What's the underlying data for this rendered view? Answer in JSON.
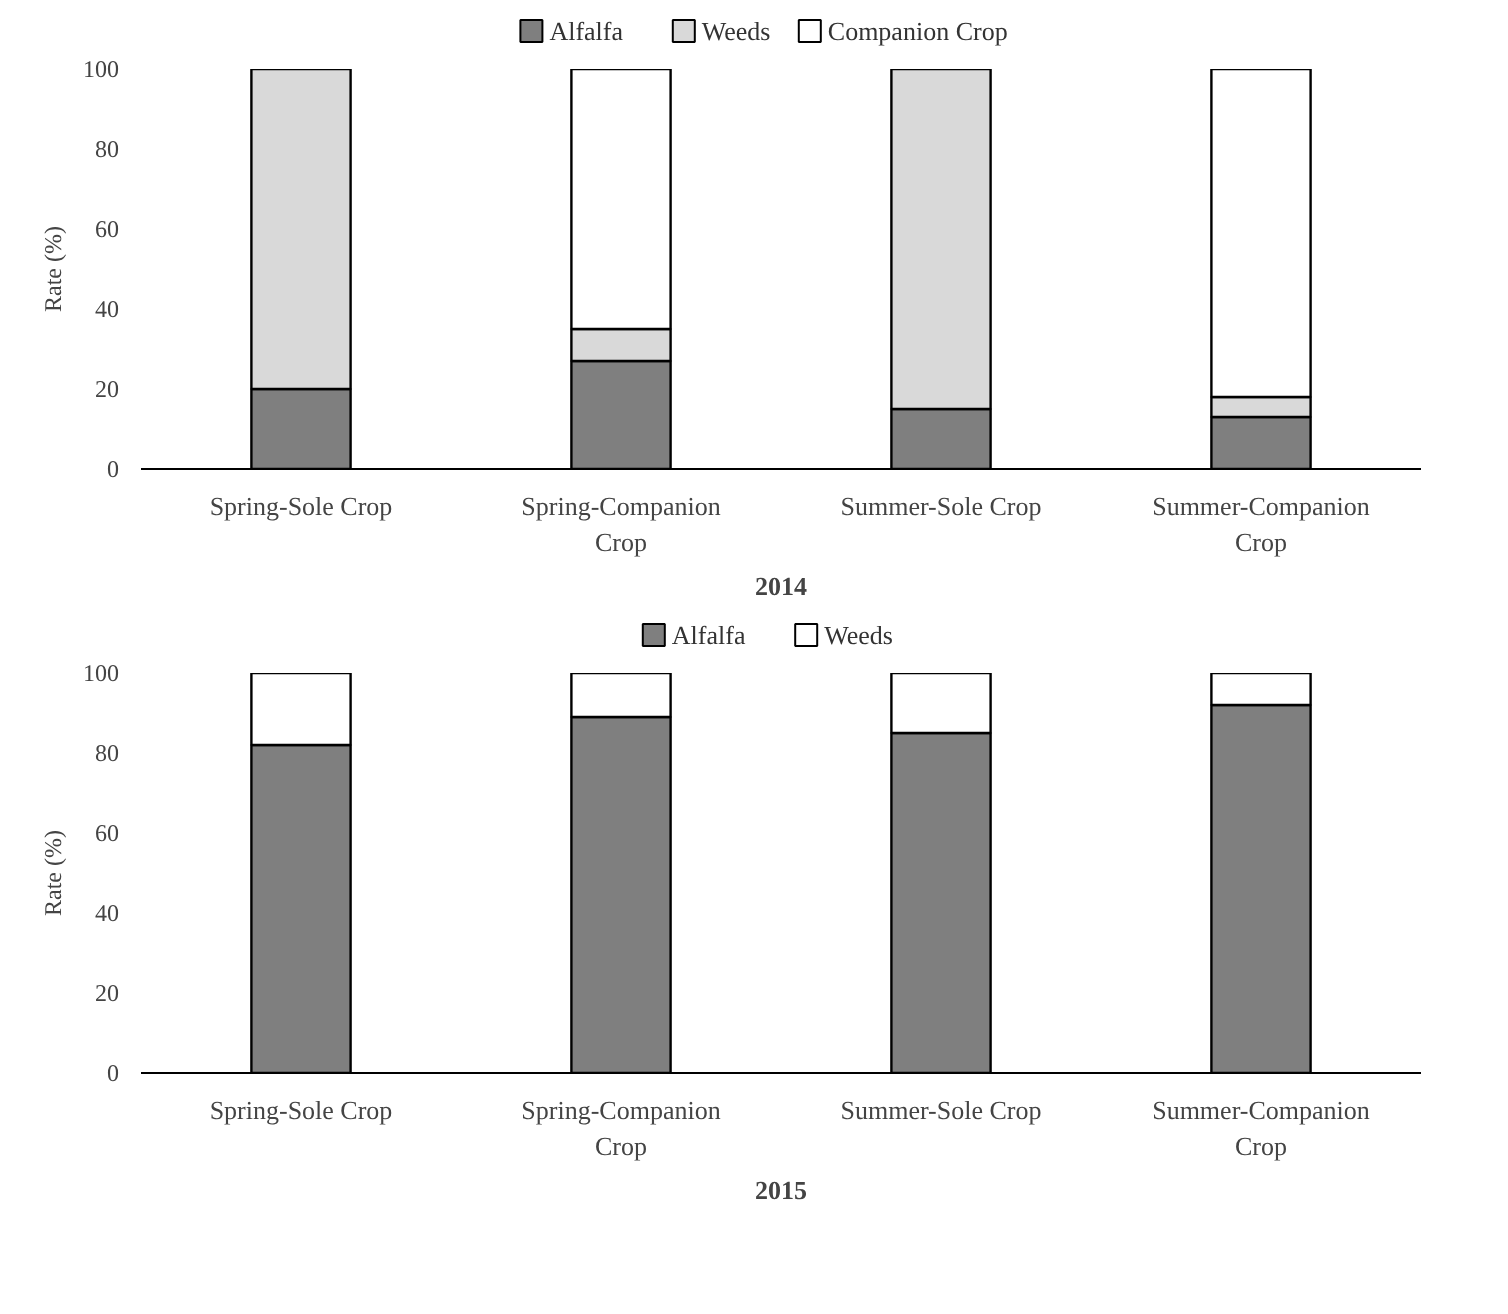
{
  "chart_data": [
    {
      "type": "bar",
      "stacked": true,
      "title": "2014",
      "ylabel": "Rate (%)",
      "categories": [
        "Spring-Sole Crop",
        "Spring-Companion Crop",
        "Summer-Sole Crop",
        "Summer-Companion Crop"
      ],
      "series": [
        {
          "name": "Alfalfa",
          "color": "#7f7f7f",
          "values": [
            20,
            27,
            15,
            13
          ]
        },
        {
          "name": "Weeds",
          "color": "#d9d9d9",
          "values": [
            80,
            8,
            85,
            5
          ]
        },
        {
          "name": "Companion Crop",
          "color": "#ffffff",
          "values": [
            null,
            65,
            null,
            82
          ]
        }
      ],
      "ylim": [
        0,
        100
      ],
      "yticks": [
        0,
        20,
        40,
        60,
        80,
        100
      ],
      "grid": false,
      "legend": "top"
    },
    {
      "type": "bar",
      "stacked": true,
      "title": "2015",
      "ylabel": "Rate (%)",
      "categories": [
        "Spring-Sole Crop",
        "Spring-Companion Crop",
        "Summer-Sole Crop",
        "Summer-Companion Crop"
      ],
      "series": [
        {
          "name": "Alfalfa",
          "color": "#7f7f7f",
          "values": [
            82,
            89,
            85,
            92
          ]
        },
        {
          "name": "Weeds",
          "color": "#ffffff",
          "values": [
            18,
            11,
            15,
            8
          ]
        }
      ],
      "ylim": [
        0,
        100
      ],
      "yticks": [
        0,
        20,
        40,
        60,
        80,
        100
      ],
      "grid": false,
      "legend": "top"
    }
  ]
}
